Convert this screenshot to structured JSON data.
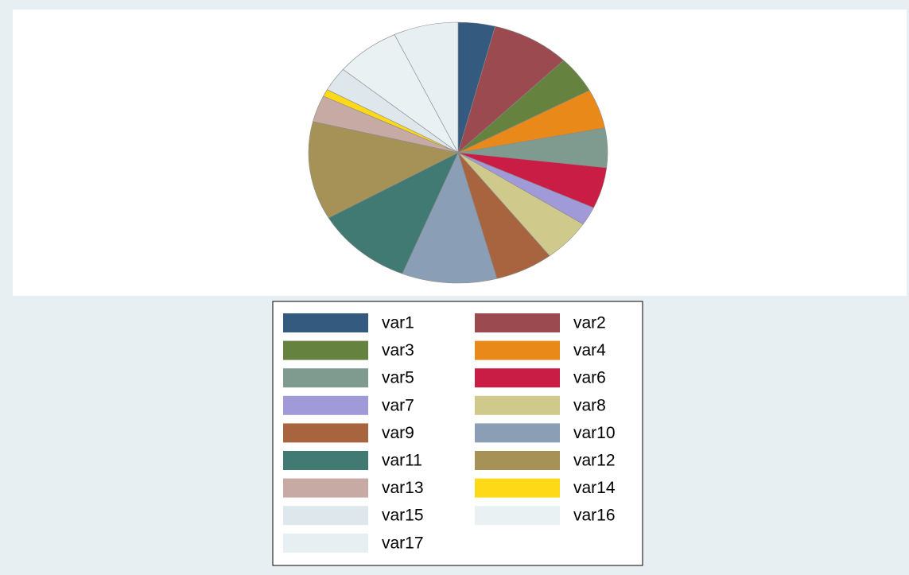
{
  "chart_data": {
    "type": "pie",
    "categories": [
      "var1",
      "var2",
      "var3",
      "var4",
      "var5",
      "var6",
      "var7",
      "var8",
      "var9",
      "var10",
      "var11",
      "var12",
      "var13",
      "var14",
      "var15",
      "var16",
      "var17"
    ],
    "values": [
      4,
      8.5,
      4.6,
      4.9,
      4.9,
      5.1,
      2.3,
      5.3,
      6.3,
      10.3,
      10.6,
      12.2,
      3.3,
      0.9,
      3,
      7,
      7
    ],
    "colors": [
      "#345a80",
      "#9b4a4f",
      "#66823f",
      "#e8891a",
      "#7f9a8e",
      "#c91d45",
      "#a09ad8",
      "#d0c98c",
      "#a8633f",
      "#8a9fb5",
      "#417a72",
      "#a69257",
      "#c8aaa4",
      "#fdd918",
      "#dde7ec",
      "#e9f1f3",
      "#e8eff2"
    ],
    "legend": "bottom"
  }
}
